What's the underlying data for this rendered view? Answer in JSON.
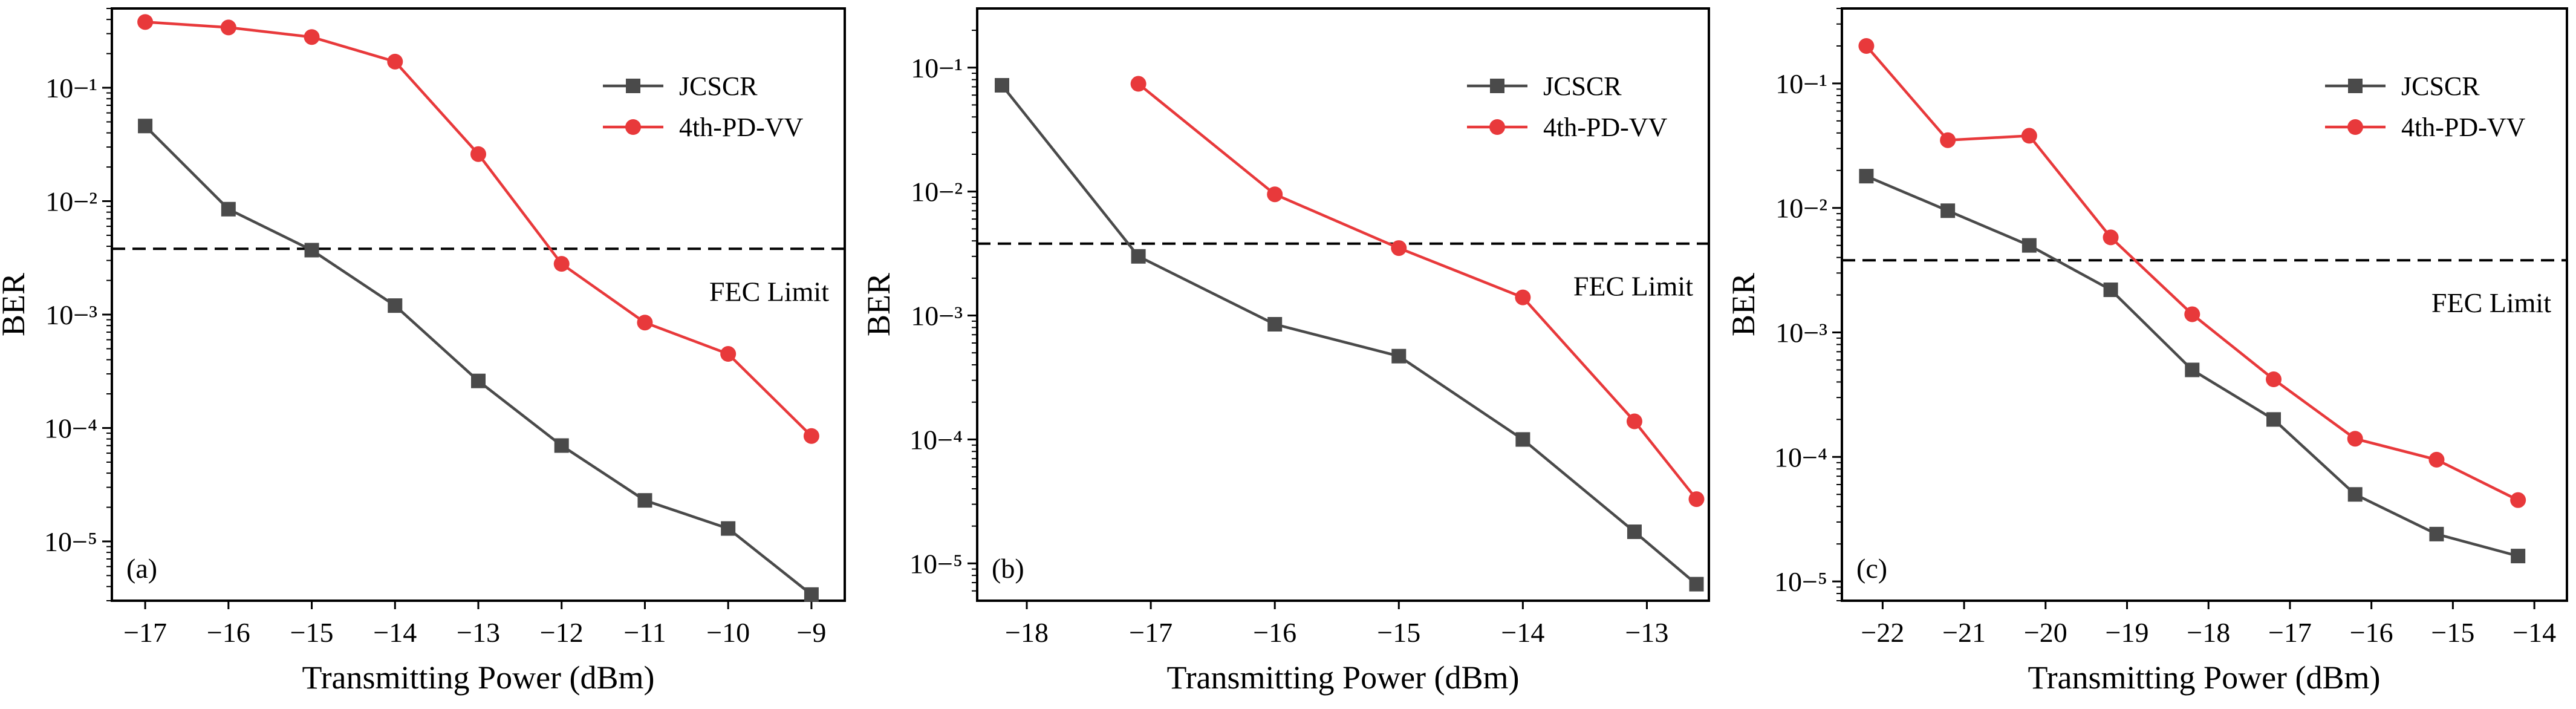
{
  "figure": {
    "x_title_text": "Transmitting Power (dBm)"
  },
  "chart_data": [
    {
      "type": "line",
      "panel_label": "(a)",
      "xlabel": "Transmitting Power (dBm)",
      "ylabel": "BER",
      "yscale": "log",
      "xlim": [
        -17.4,
        -8.6
      ],
      "ylim": [
        3e-06,
        0.5
      ],
      "xticks": [
        -17,
        -16,
        -15,
        -14,
        -13,
        -12,
        -11,
        -10,
        -9
      ],
      "xtick_labels": [
        "−17",
        "−16",
        "−15",
        "−14",
        "−13",
        "−12",
        "−11",
        "−10",
        "−9"
      ],
      "yticks_exp": [
        -5,
        -4,
        -3,
        -2,
        -1
      ],
      "fec_limit": {
        "value": 0.0038,
        "label": "FEC Limit"
      },
      "legend_position": "top-right",
      "series": [
        {
          "name": "JCSCR",
          "color": "#4a4a4a",
          "marker": "square",
          "x": [
            -17,
            -16,
            -15,
            -14,
            -13,
            -12,
            -11,
            -10,
            -9
          ],
          "values": [
            0.046,
            0.0085,
            0.0037,
            0.0012,
            0.00026,
            7e-05,
            2.3e-05,
            1.3e-05,
            3.4e-06
          ]
        },
        {
          "name": "4th-PD-VV",
          "color": "#e8393b",
          "marker": "circle",
          "x": [
            -17,
            -16,
            -15,
            -14,
            -13,
            -12,
            -11,
            -10,
            -9
          ],
          "values": [
            0.38,
            0.34,
            0.28,
            0.17,
            0.026,
            0.0028,
            0.00085,
            0.00045,
            8.5e-05
          ]
        }
      ]
    },
    {
      "type": "line",
      "panel_label": "(b)",
      "xlabel": "Transmitting Power (dBm)",
      "ylabel": "BER",
      "yscale": "log",
      "xlim": [
        -18.4,
        -12.5
      ],
      "ylim": [
        5e-06,
        0.3
      ],
      "xticks": [
        -18,
        -17,
        -16,
        -15,
        -14,
        -13
      ],
      "xtick_labels": [
        "−18",
        "−17",
        "−16",
        "−15",
        "−14",
        "−13"
      ],
      "yticks_exp": [
        -5,
        -4,
        -3,
        -2,
        -1
      ],
      "fec_limit": {
        "value": 0.0038,
        "label": "FEC Limit"
      },
      "legend_position": "top-right",
      "series": [
        {
          "name": "JCSCR",
          "color": "#4a4a4a",
          "marker": "square",
          "x": [
            -18.2,
            -17.1,
            -16,
            -15,
            -14,
            -13.1,
            -12.6
          ],
          "values": [
            0.072,
            0.003,
            0.00085,
            0.00047,
            0.0001,
            1.8e-05,
            6.8e-06
          ]
        },
        {
          "name": "4th-PD-VV",
          "color": "#e8393b",
          "marker": "circle",
          "x": [
            -17.1,
            -16,
            -15,
            -14,
            -13.1,
            -12.6
          ],
          "values": [
            0.074,
            0.0095,
            0.0035,
            0.0014,
            0.00014,
            3.3e-05
          ]
        }
      ]
    },
    {
      "type": "line",
      "panel_label": "(c)",
      "xlabel": "Transmitting Power (dBm)",
      "ylabel": "BER",
      "yscale": "log",
      "xlim": [
        -22.5,
        -13.6
      ],
      "ylim": [
        7e-06,
        0.4
      ],
      "xticks": [
        -22,
        -21,
        -20,
        -19,
        -18,
        -17,
        -16,
        -15,
        -14
      ],
      "xtick_labels": [
        "−22",
        "−21",
        "−20",
        "−19",
        "−18",
        "−17",
        "−16",
        "−15",
        "−14"
      ],
      "yticks_exp": [
        -5,
        -4,
        -3,
        -2,
        -1
      ],
      "fec_limit": {
        "value": 0.0038,
        "label": "FEC Limit"
      },
      "legend_position": "top-right",
      "series": [
        {
          "name": "JCSCR",
          "color": "#4a4a4a",
          "marker": "square",
          "x": [
            -22.2,
            -21.2,
            -20.2,
            -19.2,
            -18.2,
            -17.2,
            -16.2,
            -15.2,
            -14.2
          ],
          "values": [
            0.018,
            0.0095,
            0.005,
            0.0022,
            0.0005,
            0.0002,
            5e-05,
            2.4e-05,
            1.6e-05
          ]
        },
        {
          "name": "4th-PD-VV",
          "color": "#e8393b",
          "marker": "circle",
          "x": [
            -22.2,
            -21.2,
            -20.2,
            -19.2,
            -18.2,
            -17.2,
            -16.2,
            -15.2,
            -14.2
          ],
          "values": [
            0.2,
            0.035,
            0.038,
            0.0058,
            0.0014,
            0.00042,
            0.00014,
            9.5e-05,
            4.5e-05
          ]
        }
      ]
    }
  ]
}
